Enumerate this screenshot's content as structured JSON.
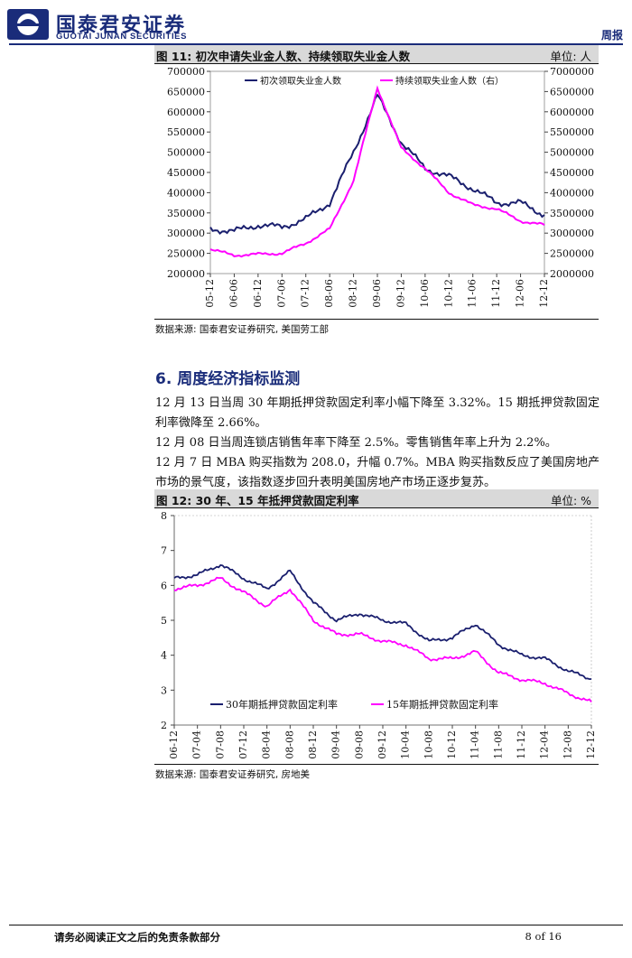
{
  "header": {
    "company_cn": "国泰君安证券",
    "company_en": "GUOTAI JUNAN SECURITIES",
    "doc_type": "周报",
    "brand_color": "#1a2c7a"
  },
  "figure11": {
    "title": "图 11:  初次申请失业金人数、持续领取失业金人数",
    "unit": "单位:  人",
    "source": "数据来源:  国泰君安证券研究,  美国劳工部"
  },
  "section": {
    "title": "6.  周度经济指标监测",
    "paragraphs": [
      "12 月 13 日当周 30 年期抵押贷款固定利率小幅下降至 3.32%。15 期抵押贷款固定利率微降至 2.66%。",
      "12 月 08 日当周连锁店销售年率下降至 2.5%。零售销售年率上升为 2.2%。",
      "12 月 7 日 MBA 购买指数为 208.0，升幅 0.7%。MBA 购买指数反应了美国房地产市场的景气度，该指数逐步回升表明美国房地产市场正逐步复苏。"
    ]
  },
  "figure12": {
    "title": "图 12:  30 年、15 年抵押贷款固定利率",
    "unit": "单位:  %",
    "source": "数据来源:  国泰君安证券研究,  房地美"
  },
  "footer": {
    "disclaimer": "请务必阅读正文之后的免责条款部分",
    "page": "8 of 16"
  },
  "chart_data": [
    {
      "type": "line",
      "x": [
        "05-12",
        "06-06",
        "06-12",
        "07-06",
        "07-12",
        "08-06",
        "08-12",
        "09-06",
        "09-12",
        "10-06",
        "10-12",
        "11-06",
        "11-12",
        "12-06",
        "12-12"
      ],
      "ylim_left": [
        200000,
        700000
      ],
      "ylim_right": [
        2000000,
        7000000
      ],
      "yticks_left": [
        "200000",
        "250000",
        "300000",
        "350000",
        "400000",
        "450000",
        "500000",
        "550000",
        "600000",
        "650000",
        "700000"
      ],
      "yticks_right": [
        "2000000",
        "2500000",
        "3000000",
        "3500000",
        "4000000",
        "4500000",
        "5000000",
        "5500000",
        "6000000",
        "6500000",
        "7000000"
      ],
      "legend_position": "top",
      "series": [
        {
          "name": "初次领取失业金人数",
          "axis": "left",
          "color": "#1a1f6e",
          "values": [
            310000,
            305000,
            320000,
            315000,
            335000,
            375000,
            500000,
            640000,
            525000,
            460000,
            440000,
            410000,
            375000,
            375000,
            345000
          ]
        },
        {
          "name": "持续领取失业金人数（右）",
          "axis": "right",
          "color": "#ff00ff",
          "values": [
            2600000,
            2450000,
            2480000,
            2500000,
            2750000,
            3100000,
            4300000,
            6600000,
            5100000,
            4600000,
            4000000,
            3700000,
            3600000,
            3300000,
            3200000
          ]
        }
      ]
    },
    {
      "type": "line",
      "x": [
        "06-12",
        "07-04",
        "07-08",
        "07-12",
        "08-04",
        "08-08",
        "08-12",
        "09-04",
        "09-08",
        "09-12",
        "10-04",
        "10-08",
        "10-12",
        "11-04",
        "11-08",
        "11-12",
        "12-04",
        "12-08",
        "12-12"
      ],
      "ylim": [
        2,
        8
      ],
      "yticks": [
        "2",
        "3",
        "4",
        "5",
        "6",
        "7",
        "8"
      ],
      "legend_position": "bottom",
      "series": [
        {
          "name": "30年期抵押贷款固定利率",
          "color": "#1a1f6e",
          "values": [
            6.2,
            6.3,
            6.6,
            6.2,
            5.9,
            6.4,
            5.5,
            5.0,
            5.2,
            5.0,
            4.9,
            4.4,
            4.5,
            4.9,
            4.3,
            4.0,
            3.9,
            3.55,
            3.32
          ]
        },
        {
          "name": "15年期抵押贷款固定利率",
          "color": "#ff00ff",
          "values": [
            5.9,
            6.0,
            6.2,
            5.8,
            5.4,
            5.9,
            5.0,
            4.6,
            4.6,
            4.4,
            4.3,
            3.9,
            3.9,
            4.1,
            3.5,
            3.3,
            3.2,
            2.9,
            2.66
          ]
        }
      ]
    }
  ]
}
